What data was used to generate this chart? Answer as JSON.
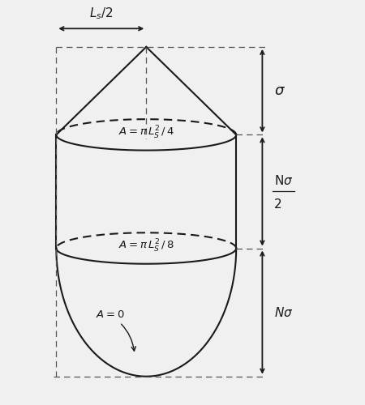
{
  "bg_color": "#f0f0f0",
  "line_color": "#1a1a1a",
  "dashed_color": "#555555",
  "fig_width": 4.5,
  "fig_height": 5.0,
  "labels": {
    "Ls2": "$L_s/2$",
    "A1": "$A = \\pi\\,L_S^2\\,/\\,4$",
    "A2": "$A = \\pi\\,L_S^2\\,/\\,8$",
    "A0": "$A = 0$",
    "sigma": "$\\sigma$",
    "Nsigma2_num": "N$\\sigma$",
    "Nsigma2_den": "2",
    "Nsigma": "N$\\sigma$"
  }
}
